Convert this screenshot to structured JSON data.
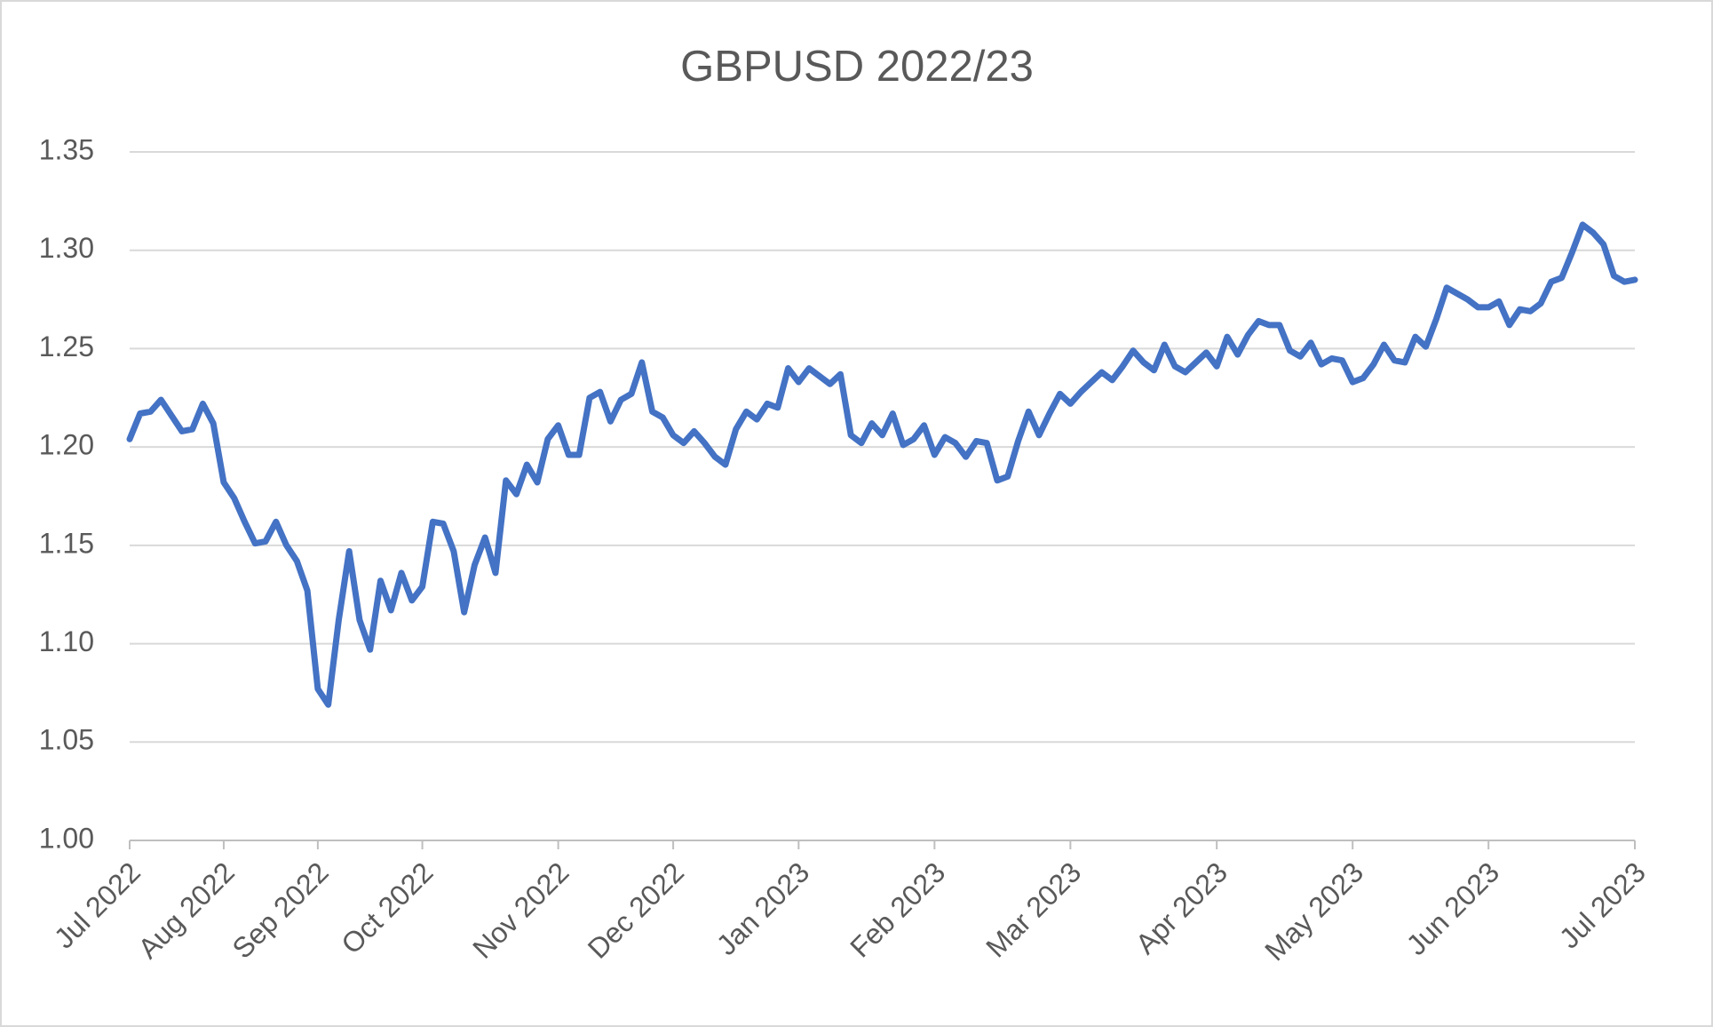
{
  "chart_data": {
    "type": "line",
    "title": "GBPUSD 2022/23",
    "color": "#4472c4",
    "grid": true,
    "ylim": [
      1.0,
      1.35
    ],
    "yticks": [
      {
        "value": 1.0,
        "label": "1.00"
      },
      1.05,
      {
        "value": 1.1,
        "label": "1.10"
      },
      1.15,
      {
        "value": 1.2,
        "label": "1.20"
      },
      1.25,
      {
        "value": 1.3,
        "label": "1.30"
      },
      1.35
    ],
    "categories": [
      "Jul 2022",
      null,
      null,
      null,
      null,
      null,
      null,
      null,
      null,
      "Aug 2022",
      null,
      null,
      null,
      null,
      null,
      null,
      null,
      null,
      "Sep 2022",
      null,
      null,
      null,
      null,
      null,
      null,
      null,
      null,
      null,
      "Oct 2022",
      null,
      null,
      null,
      null,
      null,
      null,
      null,
      null,
      null,
      null,
      null,
      null,
      "Nov 2022",
      null,
      null,
      null,
      null,
      null,
      null,
      null,
      null,
      null,
      null,
      "Dec 2022",
      null,
      null,
      null,
      null,
      null,
      null,
      null,
      null,
      null,
      null,
      null,
      "Jan 2023",
      null,
      null,
      null,
      null,
      null,
      null,
      null,
      null,
      null,
      null,
      null,
      null,
      "Feb 2023",
      null,
      null,
      null,
      null,
      null,
      null,
      null,
      null,
      null,
      null,
      null,
      null,
      "Mar 2023",
      null,
      null,
      null,
      null,
      null,
      null,
      null,
      null,
      null,
      null,
      null,
      null,
      null,
      "Apr 2023",
      null,
      null,
      null,
      null,
      null,
      null,
      null,
      null,
      null,
      null,
      null,
      null,
      "May 2023",
      null,
      null,
      null,
      null,
      null,
      null,
      null,
      null,
      null,
      null,
      null,
      null,
      "Jun 2023",
      null,
      null,
      null,
      null,
      null,
      null,
      null,
      null,
      null,
      null,
      null,
      null,
      null,
      "Jul 2023"
    ],
    "values": [
      1.204,
      1.217,
      1.218,
      1.224,
      1.216,
      1.208,
      1.209,
      1.222,
      1.212,
      1.182,
      1.174,
      1.162,
      1.151,
      1.152,
      1.162,
      1.15,
      1.142,
      1.127,
      1.077,
      1.069,
      1.112,
      1.147,
      1.112,
      1.097,
      1.132,
      1.117,
      1.136,
      1.122,
      1.129,
      1.162,
      1.161,
      1.147,
      1.116,
      1.14,
      1.154,
      1.136,
      1.183,
      1.176,
      1.191,
      1.182,
      1.204,
      1.211,
      1.196,
      1.196,
      1.225,
      1.228,
      1.213,
      1.224,
      1.227,
      1.243,
      1.218,
      1.215,
      1.206,
      1.202,
      1.208,
      1.202,
      1.195,
      1.191,
      1.209,
      1.218,
      1.214,
      1.222,
      1.22,
      1.24,
      1.233,
      1.24,
      1.236,
      1.232,
      1.237,
      1.206,
      1.202,
      1.212,
      1.206,
      1.217,
      1.201,
      1.204,
      1.211,
      1.196,
      1.205,
      1.202,
      1.195,
      1.203,
      1.202,
      1.183,
      1.185,
      1.203,
      1.218,
      1.206,
      1.217,
      1.227,
      1.222,
      1.228,
      1.233,
      1.238,
      1.234,
      1.241,
      1.249,
      1.243,
      1.239,
      1.252,
      1.241,
      1.238,
      1.243,
      1.248,
      1.241,
      1.256,
      1.247,
      1.257,
      1.264,
      1.262,
      1.262,
      1.249,
      1.246,
      1.253,
      1.242,
      1.245,
      1.244,
      1.233,
      1.235,
      1.242,
      1.252,
      1.244,
      1.243,
      1.256,
      1.251,
      1.265,
      1.281,
      1.278,
      1.275,
      1.271,
      1.271,
      1.274,
      1.262,
      1.27,
      1.269,
      1.273,
      1.284,
      1.286,
      1.299,
      1.313,
      1.309,
      1.303,
      1.287,
      1.284,
      1.285
    ]
  }
}
